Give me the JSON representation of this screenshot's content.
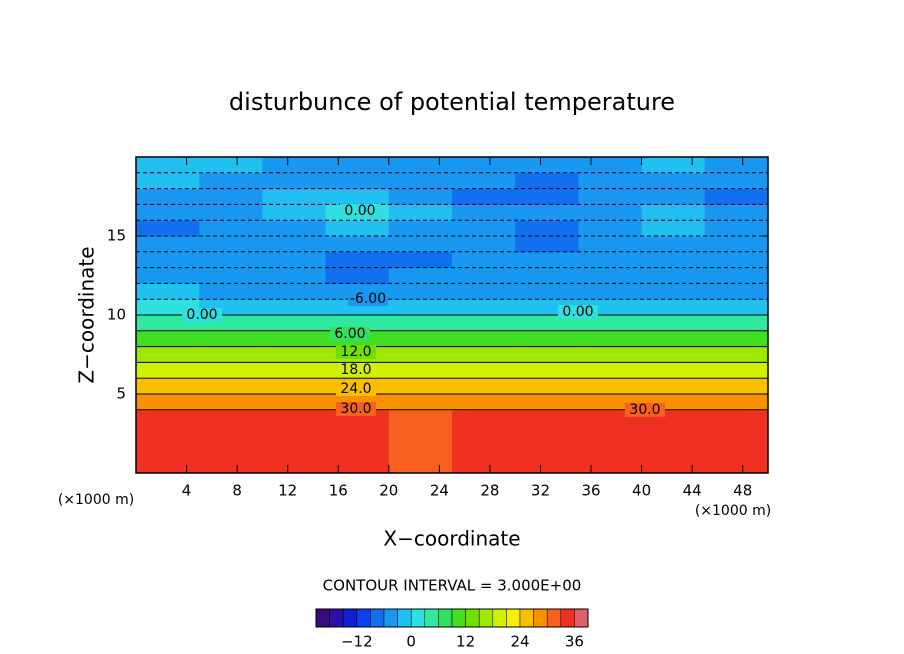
{
  "chart_data": {
    "type": "contour",
    "title": "disturbunce of potential temperature",
    "x_label": "X−coordinate",
    "y_label": "Z−coordinate",
    "x_unit_left": "(×1000 m)",
    "x_unit_right": "(×1000 m)",
    "contour_interval_text": "CONTOUR INTERVAL = 3.000E+00",
    "xlim": [
      0,
      50
    ],
    "ylim": [
      0,
      20
    ],
    "xticks": [
      4,
      8,
      12,
      16,
      20,
      24,
      28,
      32,
      36,
      40,
      44,
      48
    ],
    "yticks": [
      5,
      10,
      15
    ],
    "x_edges": [
      0,
      5,
      10,
      15,
      20,
      25,
      30,
      35,
      40,
      45,
      50
    ],
    "z_edges": [
      0,
      4,
      5,
      6,
      7,
      8,
      9,
      10,
      11,
      12,
      13,
      14,
      15,
      16,
      17,
      18,
      19,
      20
    ],
    "values": [
      [
        33,
        34,
        33,
        33,
        32,
        33,
        33,
        34,
        33,
        33
      ],
      [
        28,
        28,
        28,
        28,
        28,
        28,
        28,
        28,
        28,
        28
      ],
      [
        24,
        24,
        24,
        24,
        24,
        24,
        24,
        24,
        24,
        24
      ],
      [
        20,
        20,
        20,
        20,
        20,
        20,
        20,
        20,
        20,
        20
      ],
      [
        15,
        15,
        15,
        15,
        15,
        15,
        15,
        15,
        15,
        15
      ],
      [
        10,
        10,
        10,
        10,
        10,
        10,
        10,
        10,
        10,
        10
      ],
      [
        5,
        5,
        5,
        5,
        5,
        5,
        4,
        5,
        5,
        5
      ],
      [
        0,
        -1,
        -2,
        -2,
        -2,
        -2,
        -1,
        -1,
        -1,
        -1
      ],
      [
        -3,
        -4,
        -5,
        -6,
        -4,
        -4,
        -4,
        -5,
        -5,
        -4
      ],
      [
        -5,
        -4,
        -6,
        -7,
        -6,
        -5,
        -6,
        -5,
        -4,
        -4
      ],
      [
        -4,
        -5,
        -6,
        -8,
        -7,
        -6,
        -6,
        -5,
        -5,
        -5
      ],
      [
        -6,
        -6,
        -5,
        -5,
        -5,
        -6,
        -7,
        -6,
        -6,
        -6
      ],
      [
        -7,
        -5,
        -4,
        -3,
        -4,
        -5,
        -7,
        -6,
        -3,
        -5
      ],
      [
        -4,
        -4,
        -3,
        0,
        -1,
        -4,
        -6,
        -5,
        -2,
        -5
      ],
      [
        -5,
        -5,
        -3,
        -3,
        -4,
        -7,
        -9,
        -6,
        -4,
        -8
      ],
      [
        -3,
        -4,
        -4,
        -4,
        -4,
        -6,
        -8,
        -5,
        -4,
        -5
      ],
      [
        -3,
        -3,
        -4,
        -4,
        -5,
        -4,
        -5,
        -4,
        -3,
        -4
      ]
    ],
    "clim": [
      -21,
      39
    ],
    "contour_step": 3,
    "colormap": [
      "#3a0a78",
      "#2a10a8",
      "#1020d0",
      "#0a40f0",
      "#1070f0",
      "#1898f0",
      "#20c0f0",
      "#30e0e0",
      "#30e8a0",
      "#30e060",
      "#40e020",
      "#70e000",
      "#a0e800",
      "#d0f000",
      "#f8f000",
      "#f8c000",
      "#f89000",
      "#f86020",
      "#f03020",
      "#e06070"
    ],
    "colorbar_ticks": [
      {
        "value": -12,
        "label": "−12"
      },
      0,
      12,
      24,
      36
    ],
    "contour_labels": [
      {
        "value": 0,
        "label": "0.00"
      },
      {
        "value": 0,
        "label": "0.00"
      },
      {
        "value": 0,
        "label": "0.00"
      },
      {
        "value": -6,
        "label": "-6.00"
      },
      {
        "value": 6,
        "label": "6.00"
      },
      {
        "value": 12,
        "label": "12.0"
      },
      {
        "value": 18,
        "label": "18.0"
      },
      {
        "value": 24,
        "label": "24.0"
      },
      {
        "value": 30,
        "label": "30.0"
      },
      {
        "value": 30,
        "label": "30.0"
      }
    ]
  }
}
